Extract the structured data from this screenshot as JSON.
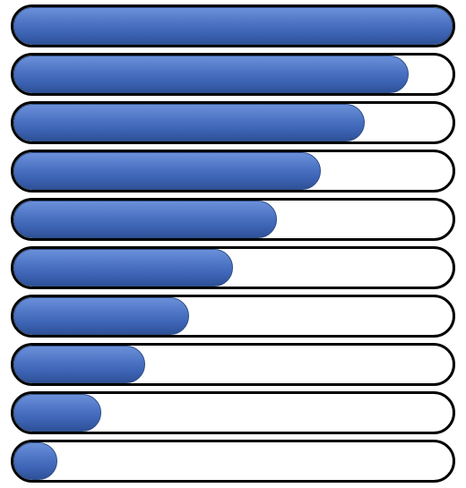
{
  "progress_bars": {
    "fill_color": "#4472C4",
    "border_color": "#000000",
    "levels_fraction": [
      1.0,
      0.9,
      0.8,
      0.7,
      0.6,
      0.5,
      0.4,
      0.3,
      0.2,
      0.1
    ]
  }
}
